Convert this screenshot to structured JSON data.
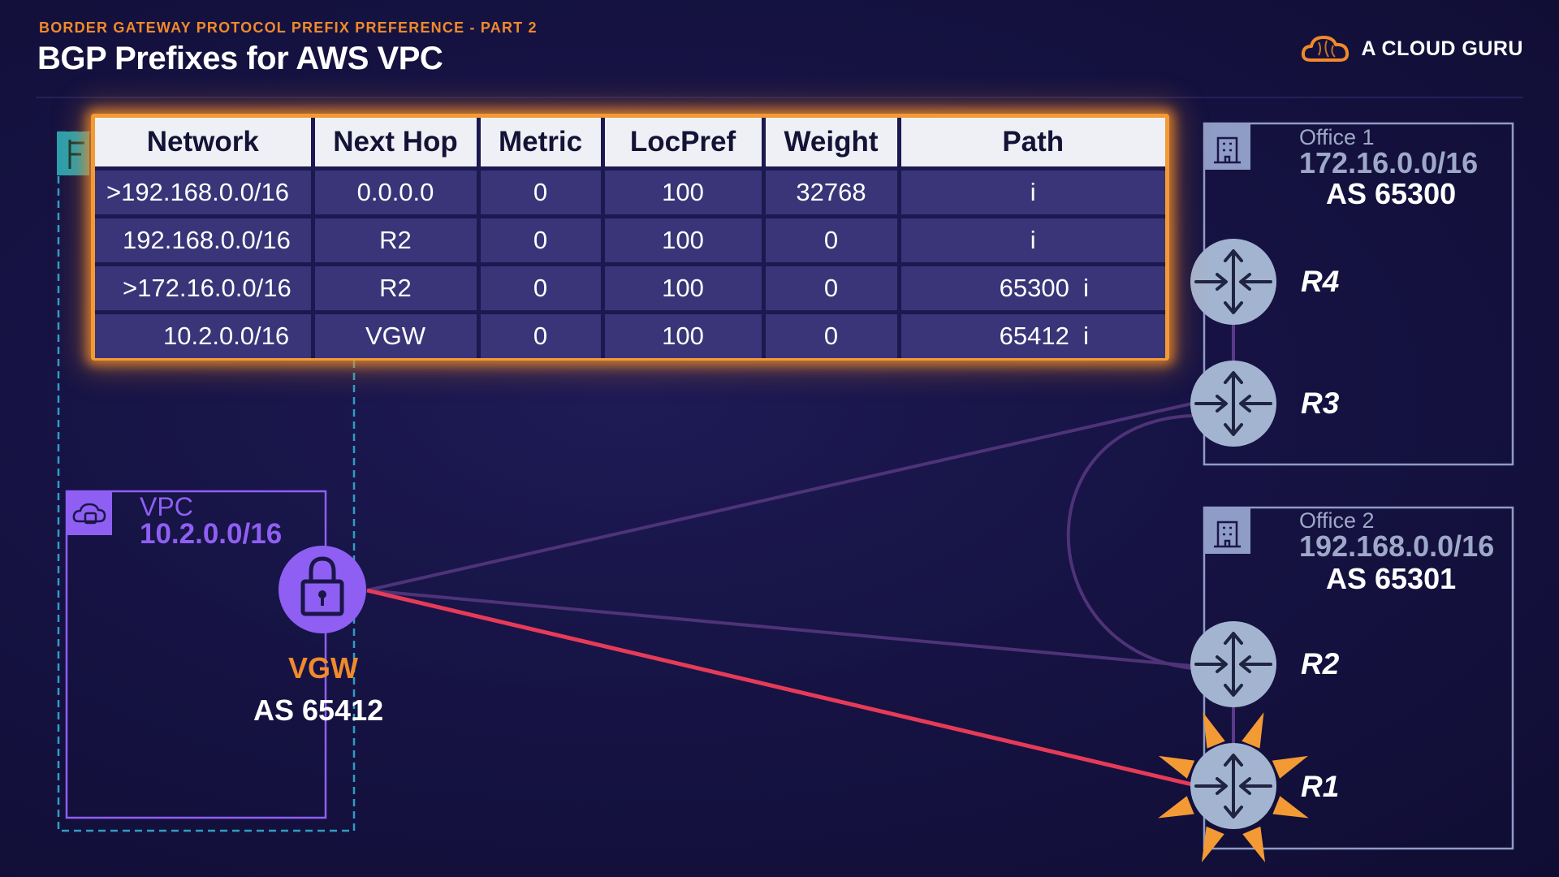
{
  "header": {
    "subtitle": "BORDER GATEWAY PROTOCOL PREFIX PREFERENCE - PART 2",
    "title": "BGP Prefixes for AWS VPC"
  },
  "brand": {
    "name": "A CLOUD GURU",
    "logo_icon": "cloud-icon"
  },
  "colors": {
    "accent_orange": "#f08a2c",
    "vpc_purple": "#8f5ff3",
    "router_fill": "#a3b4d1",
    "active_link": "#e63b58",
    "background": "#161344"
  },
  "bgp_table": {
    "columns": [
      "Network",
      "Next Hop",
      "Metric",
      "LocPref",
      "Weight",
      "Path"
    ],
    "rows": [
      {
        "network": ">192.168.0.0/16",
        "next_hop": "0.0.0.0",
        "metric": "0",
        "locpref": "100",
        "weight": "32768",
        "path": "i"
      },
      {
        "network": "192.168.0.0/16",
        "next_hop": "R2",
        "metric": "0",
        "locpref": "100",
        "weight": "0",
        "path": "i"
      },
      {
        "network": ">172.16.0.0/16",
        "next_hop": "R2",
        "metric": "0",
        "locpref": "100",
        "weight": "0",
        "path": "65300  i"
      },
      {
        "network": "10.2.0.0/16",
        "next_hop": "VGW",
        "metric": "0",
        "locpref": "100",
        "weight": "0",
        "path": "65412  i"
      }
    ]
  },
  "office1": {
    "name": "Office 1",
    "cidr": "172.16.0.0/16",
    "as": "AS 65300",
    "icon": "building-icon",
    "routers": [
      "R4",
      "R3"
    ]
  },
  "office2": {
    "name": "Office 2",
    "cidr": "192.168.0.0/16",
    "as": "AS 65301",
    "icon": "building-icon",
    "routers": [
      "R2",
      "R1"
    ]
  },
  "vpc": {
    "name": "VPC",
    "cidr": "10.2.0.0/16",
    "icon": "cloud-lock-icon",
    "gateway": {
      "label": "VGW",
      "as": "AS 65412",
      "icon": "padlock-icon"
    },
    "region_icon": "aws-region-flag-icon"
  },
  "highlight": {
    "active_router": "R1",
    "active_link": "VGW-R1"
  }
}
